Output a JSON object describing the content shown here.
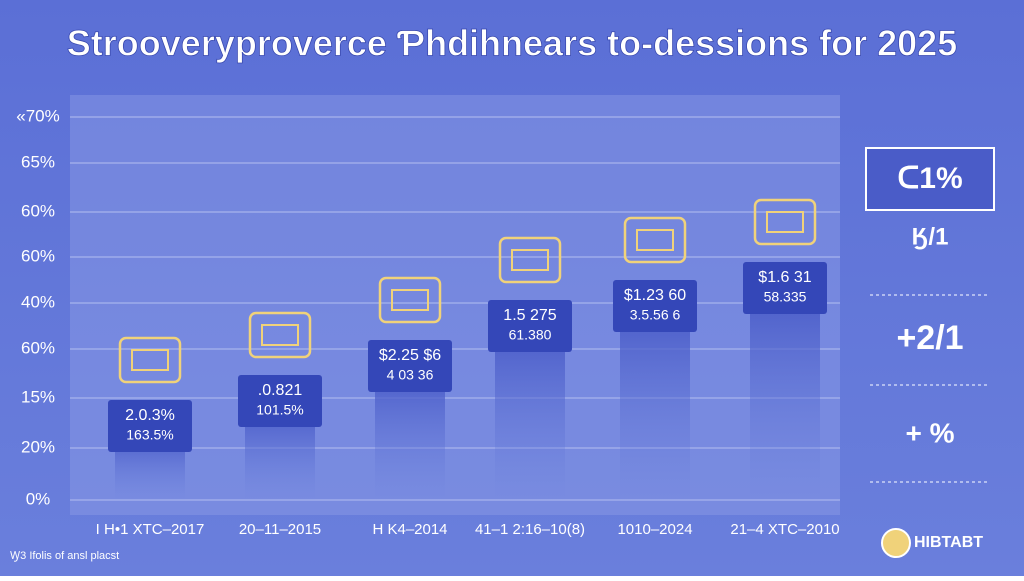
{
  "title": "Strooveryproverce Ƥhdihnears to-dessions for 2025",
  "y_axis_labels": [
    "«70%",
    "65%",
    "60%",
    "60%",
    "40%",
    "60%",
    "15%",
    "20%",
    "0%"
  ],
  "columns": [
    {
      "label": "I H•1 XTC–2017",
      "lines": [
        "2.0.3%",
        "163.5%"
      ]
    },
    {
      "label": "20–11–2015",
      "lines": [
        ".0.821",
        "101.5%"
      ]
    },
    {
      "label": "H K4–2014",
      "lines": [
        "$2.25 $6",
        "4 03 36"
      ]
    },
    {
      "label": "41–1 2:16–10(8)",
      "lines": [
        "1.5 275",
        "61.380"
      ]
    },
    {
      "label": "1010–2024",
      "lines": [
        "$1.23 60",
        "3.5.56 6"
      ]
    },
    {
      "label": "21–4 XTC–2010",
      "lines": [
        "$1.6 31",
        "58.335"
      ]
    }
  ],
  "side_panel": [
    "ᑕ1%",
    "Ӄ/1",
    "+2/1",
    "+ %"
  ],
  "footer": "Ꝡ3 Ifolis of ansl placst",
  "logo": "HIBTABT"
}
